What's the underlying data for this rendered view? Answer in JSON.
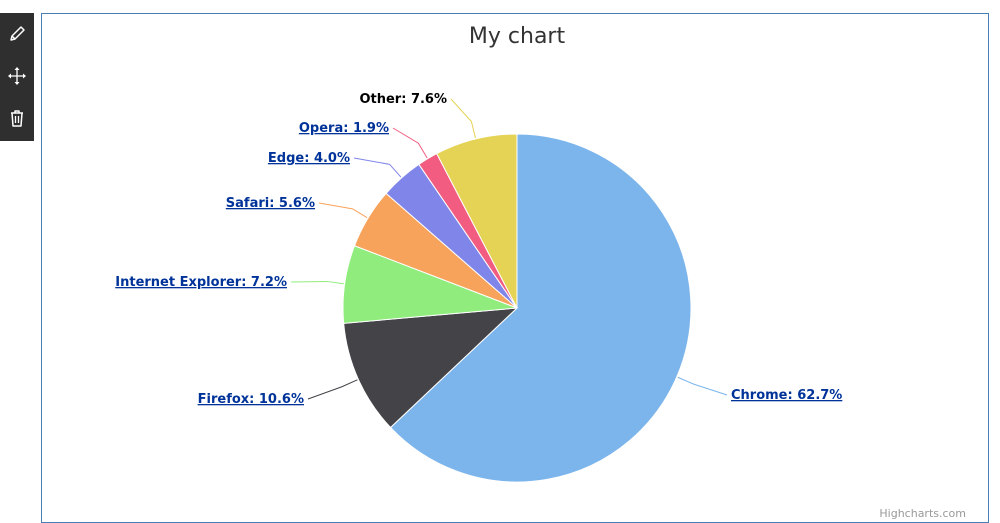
{
  "toolbar": {
    "tools": [
      {
        "name": "edit-icon"
      },
      {
        "name": "move-icon"
      },
      {
        "name": "delete-icon"
      }
    ]
  },
  "chart_data": {
    "type": "pie",
    "title": "My chart",
    "start_angle_deg": 0,
    "slices": [
      {
        "name": "Chrome",
        "value": 62.7,
        "color": "#7cb5ec",
        "link": true
      },
      {
        "name": "Firefox",
        "value": 10.6,
        "color": "#434348",
        "link": true
      },
      {
        "name": "Internet Explorer",
        "value": 7.2,
        "color": "#90ed7d",
        "link": true
      },
      {
        "name": "Safari",
        "value": 5.6,
        "color": "#f7a35c",
        "link": true
      },
      {
        "name": "Edge",
        "value": 4.0,
        "color": "#8085e9",
        "link": true
      },
      {
        "name": "Opera",
        "value": 1.9,
        "color": "#f15c80",
        "link": true
      },
      {
        "name": "Other",
        "value": 7.6,
        "color": "#e4d354",
        "link": false
      }
    ]
  },
  "credits": "Highcharts.com"
}
